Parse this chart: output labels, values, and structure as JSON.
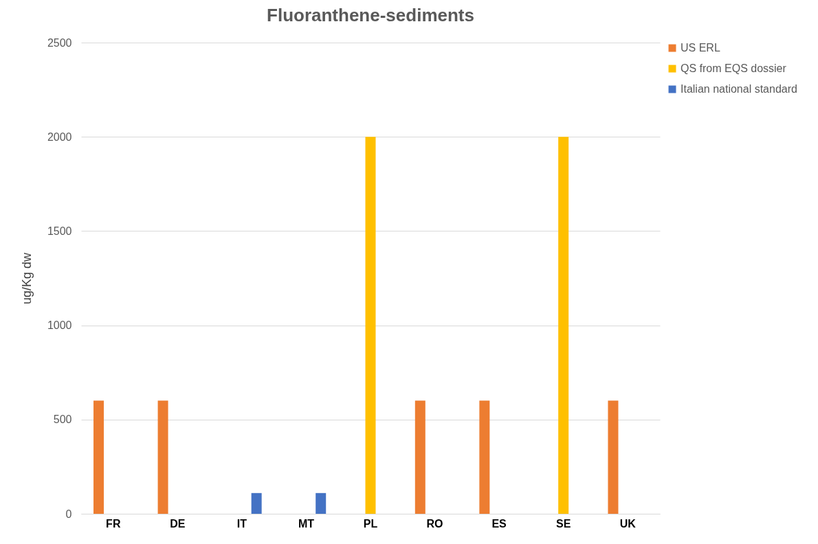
{
  "chart_data": {
    "type": "bar",
    "title": "Fluoranthene-sediments",
    "ylabel": "ug/Kg dw",
    "categories": [
      "FR",
      "DE",
      "IT",
      "MT",
      "PL",
      "RO",
      "ES",
      "SE",
      "UK"
    ],
    "series": [
      {
        "name": "US ERL",
        "color": "#ed7d31",
        "values": [
          600,
          600,
          null,
          null,
          null,
          600,
          600,
          null,
          600
        ]
      },
      {
        "name": "QS from EQS dossier",
        "color": "#ffc000",
        "values": [
          null,
          null,
          null,
          null,
          2000,
          null,
          null,
          2000,
          null
        ]
      },
      {
        "name": "Italian national standard",
        "color": "#4472c4",
        "values": [
          null,
          null,
          110,
          110,
          null,
          null,
          null,
          null,
          null
        ]
      }
    ],
    "ylim": [
      0,
      2500
    ],
    "yticks": [
      0,
      500,
      1000,
      1500,
      2000,
      2500
    ],
    "grid": "y",
    "legend": "right"
  }
}
